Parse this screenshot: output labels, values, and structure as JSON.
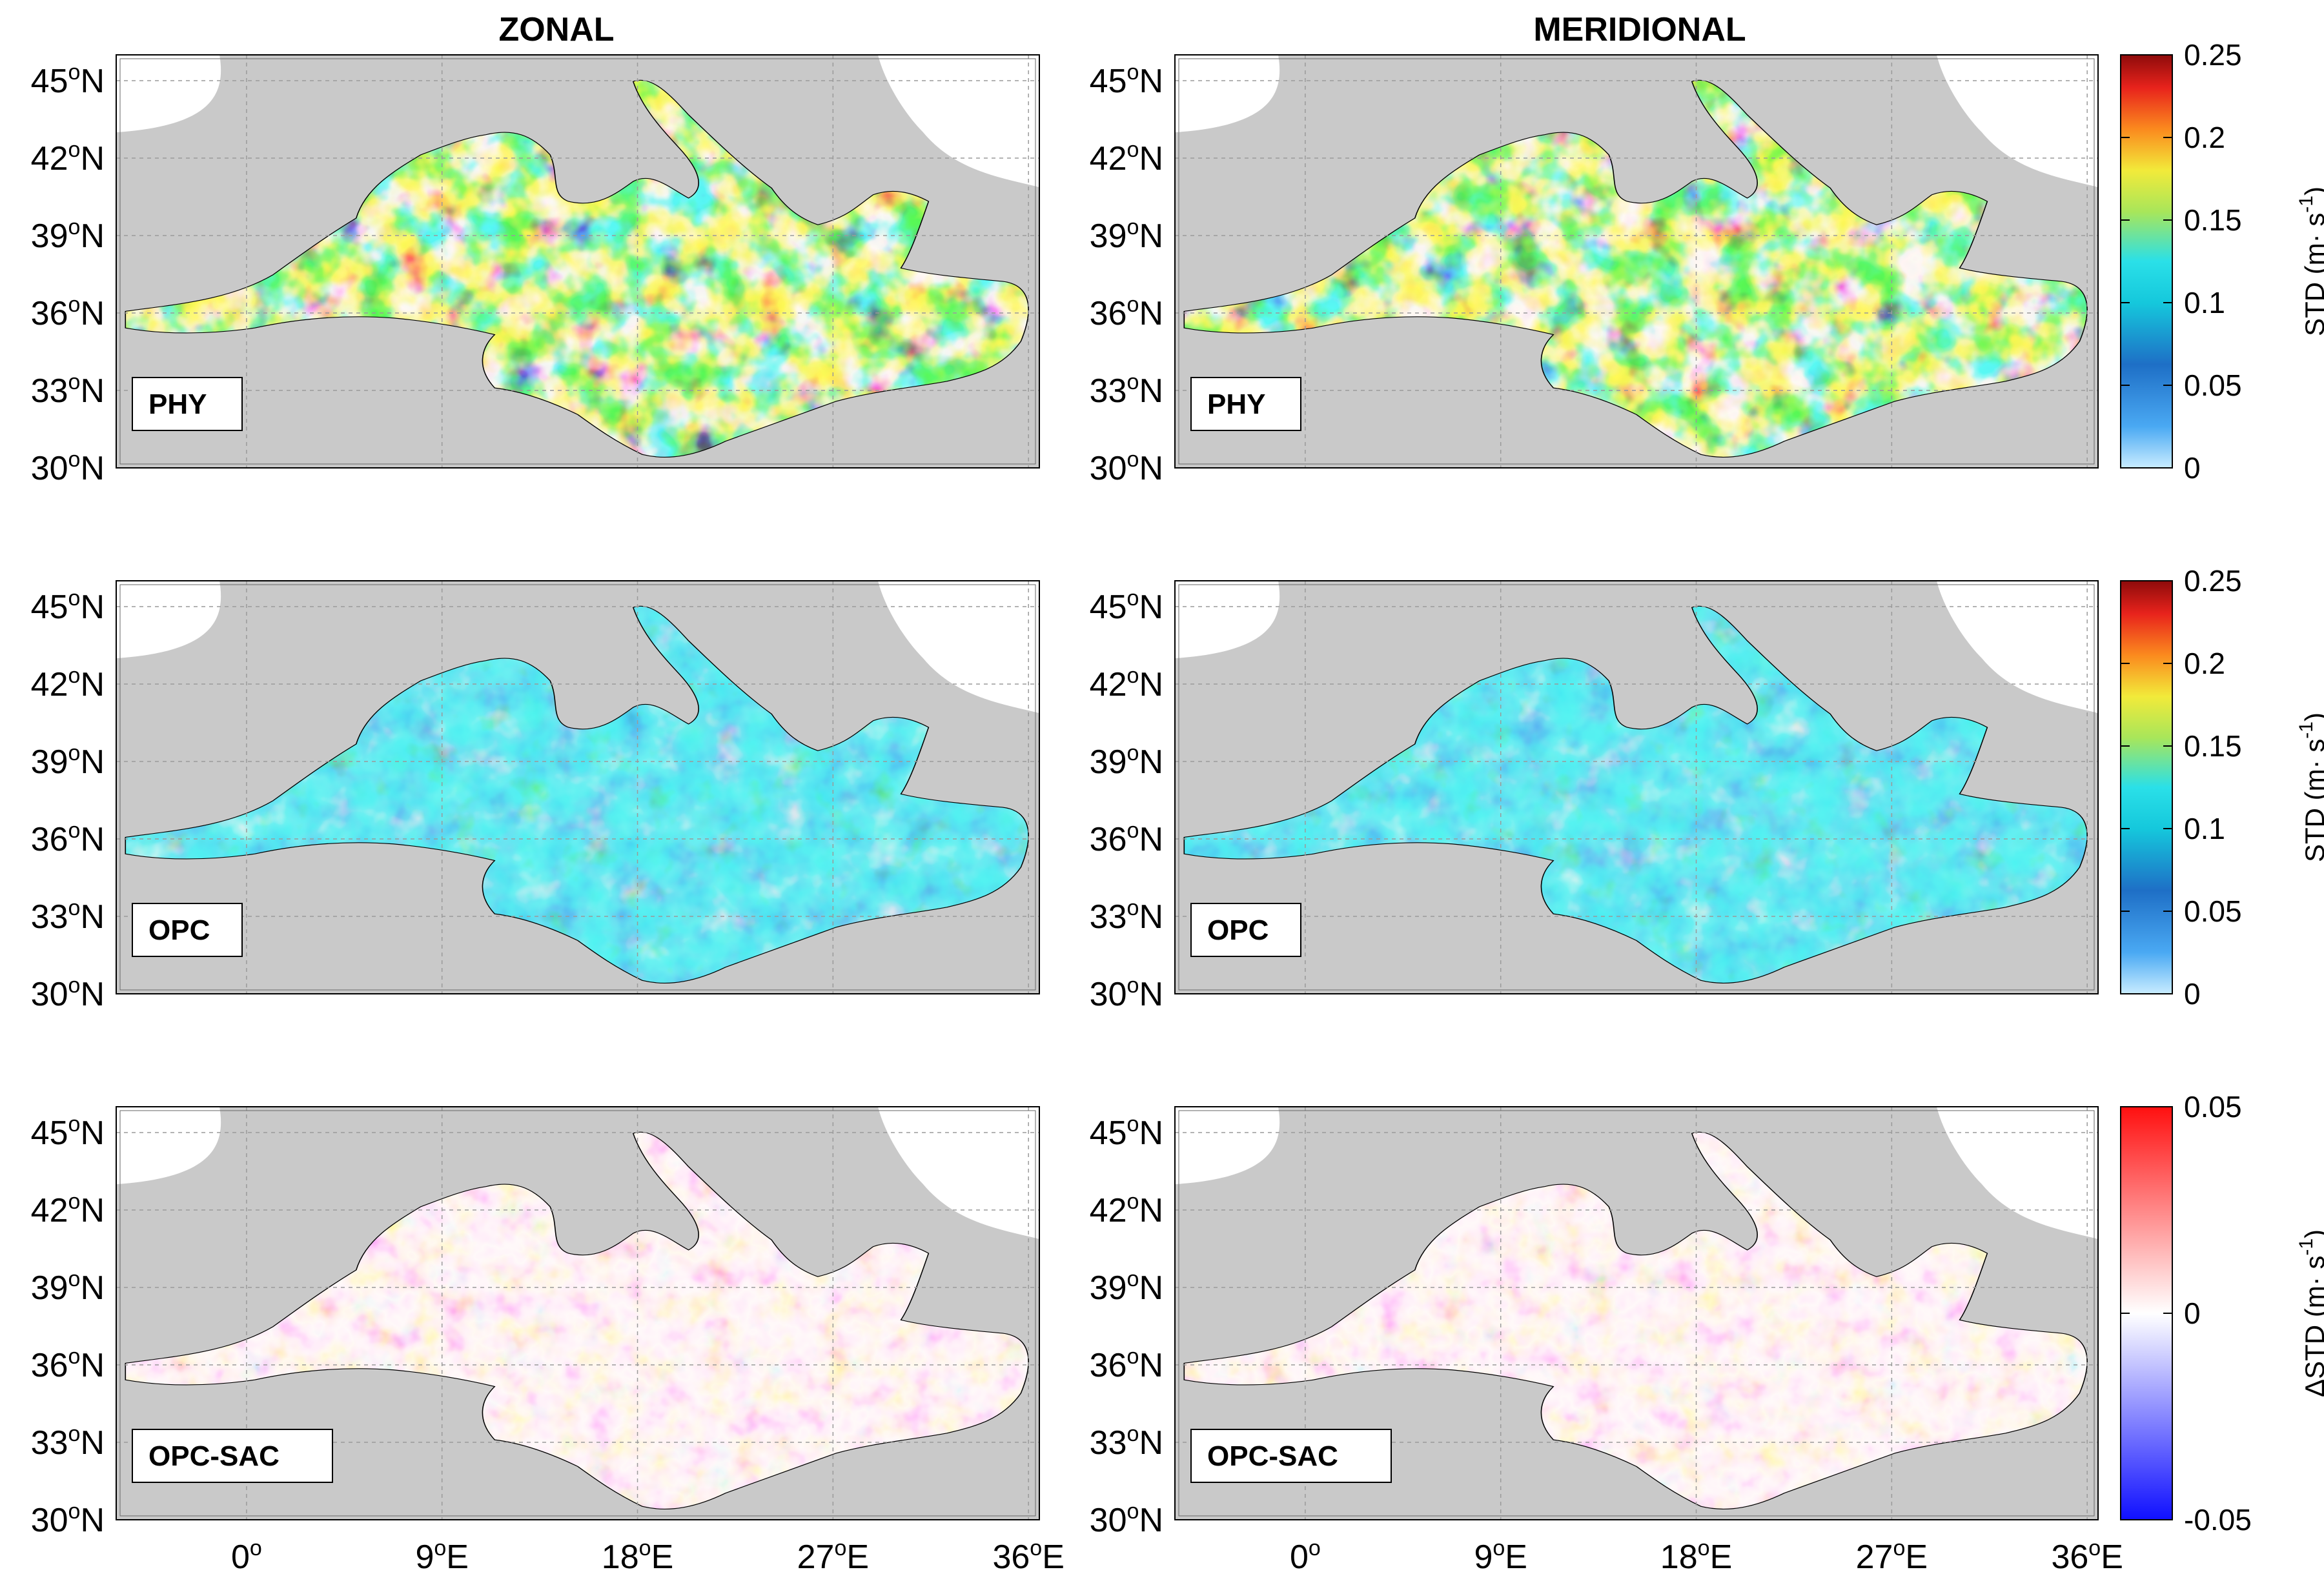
{
  "chart_data": {
    "type": "heatmap",
    "columns": [
      "ZONAL",
      "MERIDIONAL"
    ],
    "lat_ticks": [
      "30",
      "33",
      "36",
      "39",
      "42",
      "45"
    ],
    "lon_ticks": [
      "0",
      "9",
      "18",
      "27",
      "36"
    ],
    "lat_range": [
      30,
      46
    ],
    "lon_range": [
      -6,
      36.5
    ],
    "lat_suffix": "N",
    "lon_suffix": "E",
    "degree_symbol": "o",
    "rows": [
      {
        "label": "PHY",
        "colormap": "jet",
        "colorbar": {
          "ticks": [
            "0",
            "0.05",
            "0.1",
            "0.15",
            "0.2",
            "0.25"
          ],
          "range": [
            0,
            0.25
          ],
          "label_prefix": "STD (m",
          "label_unit_s": "s",
          "label_exp": "-1",
          "label_suffix": ")"
        }
      },
      {
        "label": "OPC",
        "colormap": "jet",
        "colorbar": {
          "ticks": [
            "0",
            "0.05",
            "0.1",
            "0.15",
            "0.2",
            "0.25"
          ],
          "range": [
            0,
            0.25
          ],
          "label_prefix": "STD (m",
          "label_unit_s": "s",
          "label_exp": "-1",
          "label_suffix": ")"
        }
      },
      {
        "label": "OPC-SAC",
        "colormap": "bwr",
        "colorbar": {
          "ticks": [
            "-0.05",
            "0",
            "0.05"
          ],
          "range": [
            -0.05,
            0.05
          ],
          "label_prefix": "ΔSTD (m",
          "label_unit_s": "s",
          "label_exp": "-1",
          "label_suffix": ")"
        }
      }
    ]
  },
  "colors": {
    "land_gray": "#c9c9c9",
    "outside": "#ffffff",
    "coast": "#000000",
    "grid": "#9a9a9a"
  }
}
